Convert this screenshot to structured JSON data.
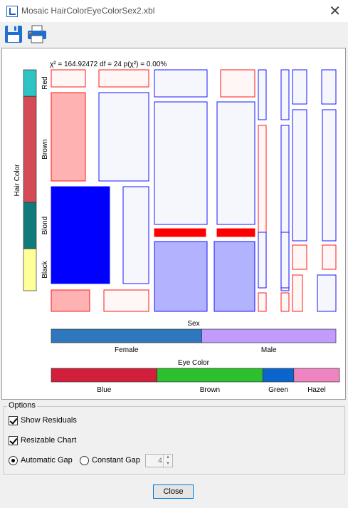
{
  "window": {
    "title": "Mosaic HairColorEyeColorSex2.xbl",
    "close_glyph": "✕"
  },
  "toolbar": [
    {
      "name": "save-icon",
      "tooltip": ""
    },
    {
      "name": "print-icon",
      "tooltip": ""
    }
  ],
  "chart_data": {
    "type": "mosaic",
    "stats": "χ² = 164.92472  df = 24  p(χ²) = 0.00%",
    "variables": [
      {
        "name": "Hair Color",
        "levels": [
          {
            "label": "Red",
            "color": "#2ec4c4"
          },
          {
            "label": "Brown",
            "color": "#d44a57"
          },
          {
            "label": "Blond",
            "color": "#117a7a"
          },
          {
            "label": "Black",
            "color": "#ffff99"
          }
        ]
      },
      {
        "name": "Sex",
        "levels": [
          {
            "label": "Female",
            "color": "#2f78bd"
          },
          {
            "label": "Male",
            "color": "#c29bff"
          }
        ]
      },
      {
        "name": "Eye Color",
        "levels": [
          {
            "label": "Blue",
            "color": "#d21f3c"
          },
          {
            "label": "Brown",
            "color": "#2dbf2d"
          },
          {
            "label": "Green",
            "color": "#0a66cc"
          },
          {
            "label": "Hazel",
            "color": "#ef85c0"
          }
        ]
      }
    ],
    "hair_shares": [
      0.12,
      0.48,
      0.21,
      0.19
    ],
    "sex_shares": [
      0.5286,
      0.4714
    ],
    "eye_shares": [
      0.3716,
      0.3716,
      0.1088,
      0.1605
    ],
    "residual_colors": {
      "positive": "#0000ff",
      "negative": "#ff0000"
    }
  },
  "options": {
    "legend": "Options",
    "show_residuals_label": "Show Residuals",
    "resizable_chart_label": "Resizable Chart",
    "automatic_gap_label": "Automatic Gap",
    "constant_gap_label": "Constant Gap",
    "gap_value": "4",
    "show_residuals": true,
    "resizable_chart": true,
    "gap_mode": "automatic"
  },
  "buttons": {
    "close_label": "Close"
  }
}
